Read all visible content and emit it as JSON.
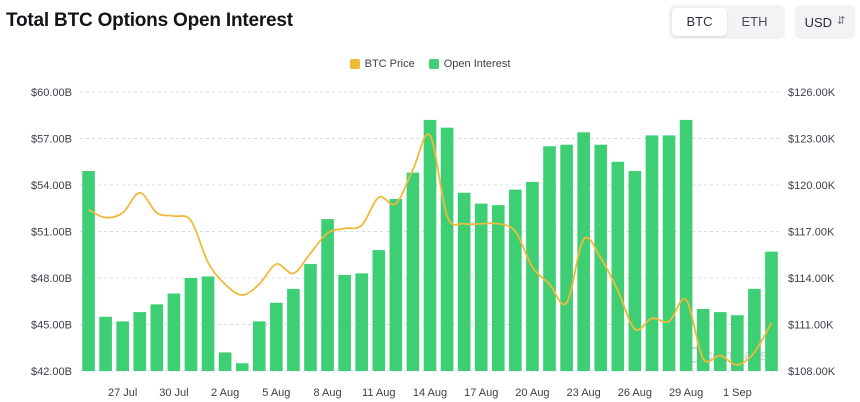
{
  "header": {
    "title": "Total BTC Options Open Interest",
    "toggle": [
      "BTC",
      "ETH"
    ],
    "toggle_active": 0,
    "currency": "USD",
    "currency_icon": "chevron-updown-icon"
  },
  "colors": {
    "bar": "#3ecf74",
    "line": "#f0b93b",
    "grid": "#d9dce1",
    "text": "#3a3f47"
  },
  "watermark": "coinglass",
  "chart_data": {
    "type": "bar",
    "legend": [
      {
        "name": "BTC Price",
        "color": "#f0b93b"
      },
      {
        "name": "Open Interest",
        "color": "#3ecf74"
      }
    ],
    "legend_position": "top",
    "grid": "horizontal",
    "x_ticks": [
      "27 Jul",
      "30 Jul",
      "2 Aug",
      "5 Aug",
      "8 Aug",
      "11 Aug",
      "14 Aug",
      "17 Aug",
      "20 Aug",
      "23 Aug",
      "26 Aug",
      "29 Aug",
      "1 Sep"
    ],
    "x_tick_positions": [
      2,
      5,
      8,
      11,
      14,
      17,
      20,
      23,
      26,
      29,
      32,
      35,
      38
    ],
    "categories": [
      "25 Jul",
      "26 Jul",
      "27 Jul",
      "28 Jul",
      "29 Jul",
      "30 Jul",
      "31 Jul",
      "1 Aug",
      "2 Aug",
      "3 Aug",
      "4 Aug",
      "5 Aug",
      "6 Aug",
      "7 Aug",
      "8 Aug",
      "9 Aug",
      "10 Aug",
      "11 Aug",
      "12 Aug",
      "13 Aug",
      "14 Aug",
      "15 Aug",
      "16 Aug",
      "17 Aug",
      "18 Aug",
      "19 Aug",
      "20 Aug",
      "21 Aug",
      "22 Aug",
      "23 Aug",
      "24 Aug",
      "25 Aug",
      "26 Aug",
      "27 Aug",
      "28 Aug",
      "29 Aug",
      "30 Aug",
      "31 Aug",
      "1 Sep",
      "2 Sep",
      "3 Sep"
    ],
    "y_left": {
      "ticks": [
        "$42.00B",
        "$45.00B",
        "$48.00B",
        "$51.00B",
        "$54.00B",
        "$57.00B",
        "$60.00B"
      ],
      "range": [
        42,
        60
      ]
    },
    "y_right": {
      "ticks": [
        "$108.00K",
        "$111.00K",
        "$114.00K",
        "$117.00K",
        "$120.00K",
        "$123.00K",
        "$126.00K"
      ],
      "range": [
        108,
        126
      ]
    },
    "series": [
      {
        "name": "Open Interest",
        "type": "bar",
        "axis": "left",
        "values": [
          54.9,
          45.5,
          45.2,
          45.8,
          46.3,
          47.0,
          48.0,
          48.1,
          43.2,
          42.5,
          45.2,
          46.4,
          47.3,
          48.9,
          51.8,
          48.2,
          48.3,
          49.8,
          53.1,
          54.8,
          58.2,
          57.7,
          53.5,
          52.8,
          52.7,
          53.7,
          54.2,
          56.5,
          56.6,
          57.4,
          56.6,
          55.5,
          54.9,
          57.2,
          57.2,
          58.2,
          46.0,
          45.8,
          45.6,
          47.3,
          49.7
        ]
      },
      {
        "name": "BTC Price",
        "type": "line",
        "axis": "right",
        "values": [
          118.4,
          117.9,
          118.2,
          119.5,
          118.2,
          118.0,
          117.7,
          115.0,
          113.6,
          112.9,
          113.6,
          114.9,
          114.3,
          115.6,
          116.9,
          117.2,
          117.4,
          119.2,
          118.8,
          121.0,
          123.2,
          118.0,
          117.5,
          117.5,
          117.5,
          117.0,
          114.7,
          113.6,
          112.4,
          116.5,
          115.3,
          113.2,
          110.7,
          111.4,
          111.2,
          112.6,
          108.8,
          109.0,
          108.4,
          109.2,
          111.1
        ]
      }
    ]
  }
}
